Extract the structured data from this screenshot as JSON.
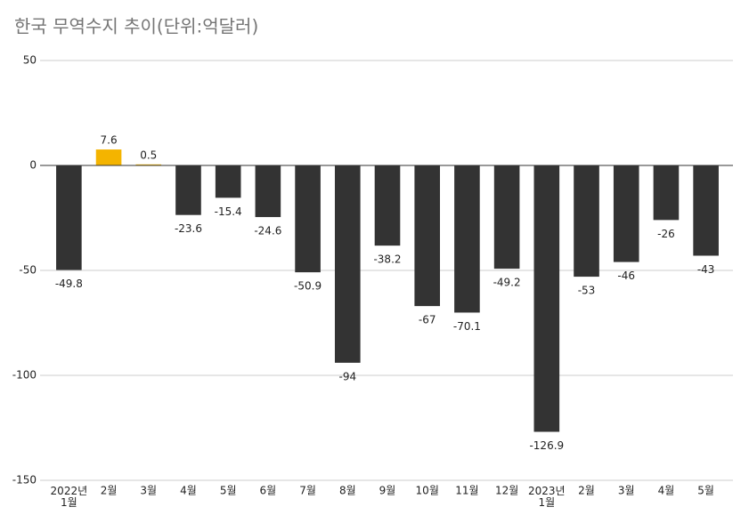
{
  "chart_data": {
    "type": "bar",
    "title": "한국 무역수지 추이(단위:억달러)",
    "categories": [
      "2022년\n1월",
      "2월",
      "3월",
      "4월",
      "5월",
      "6월",
      "7월",
      "8월",
      "9월",
      "10월",
      "11월",
      "12월",
      "2023년\n1월",
      "2월",
      "3월",
      "4월",
      "5월"
    ],
    "values": [
      -49.8,
      7.6,
      0.5,
      -23.6,
      -15.4,
      -24.6,
      -50.9,
      -94,
      -38.2,
      -67,
      -70.1,
      -49.2,
      -126.9,
      -53,
      -46,
      -26,
      -43
    ],
    "color": "#333333",
    "positive_color": "#f4b400",
    "ylim": [
      -150,
      50
    ],
    "yticks": [
      -150,
      -100,
      -50,
      0,
      50
    ],
    "grid": true
  }
}
